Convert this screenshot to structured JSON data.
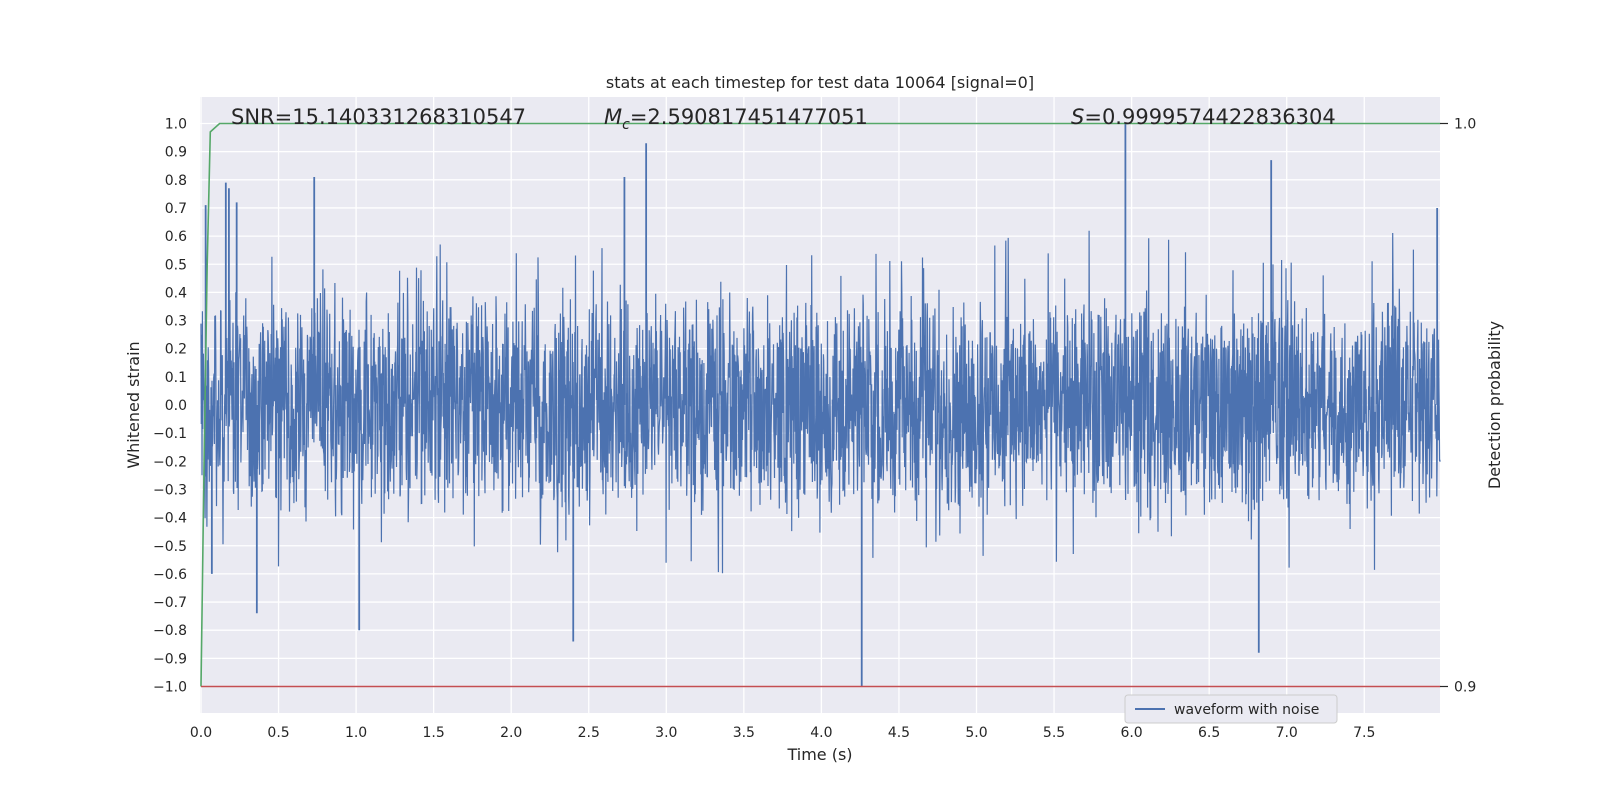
{
  "chart_data": {
    "type": "line",
    "title": "stats at each timestep for test data 10064 [signal=0]",
    "xlabel": "Time (s)",
    "ylabel": "Whitened strain",
    "y2label": "Detection probability",
    "xlim": [
      0.0,
      8.0
    ],
    "ylim": [
      -1.1,
      1.1
    ],
    "y2lim": [
      0.9,
      1.0
    ],
    "grid": true,
    "x_ticks": [
      0.0,
      0.5,
      1.0,
      1.5,
      2.0,
      2.5,
      3.0,
      3.5,
      4.0,
      4.5,
      5.0,
      5.5,
      6.0,
      6.5,
      7.0,
      7.5
    ],
    "x_tick_labels": [
      "0.0",
      "0.5",
      "1.0",
      "1.5",
      "2.0",
      "2.5",
      "3.0",
      "3.5",
      "4.0",
      "4.5",
      "5.0",
      "5.5",
      "6.0",
      "6.5",
      "7.0",
      "7.5"
    ],
    "y_ticks": [
      1.0,
      0.9,
      0.8,
      0.7,
      0.6,
      0.5,
      0.4,
      0.3,
      0.2,
      0.1,
      0.0,
      -0.1,
      -0.2,
      -0.3,
      -0.4,
      -0.5,
      -0.6,
      -0.7,
      -0.8,
      -0.9,
      -1.0
    ],
    "y_tick_labels": [
      "1.0",
      "0.9",
      "0.8",
      "0.7",
      "0.6",
      "0.5",
      "0.4",
      "0.3",
      "0.2",
      "0.1",
      "0.0",
      "−0.1",
      "−0.2",
      "−0.3",
      "−0.4",
      "−0.5",
      "−0.6",
      "−0.7",
      "−0.8",
      "−0.9",
      "−1.0"
    ],
    "y2_ticks": [
      1.0,
      0.9
    ],
    "y2_tick_labels": [
      "1.0",
      "0.9"
    ],
    "annotations": {
      "snr": "SNR=15.140331268310547",
      "mc_symbol": "M",
      "mc_subscript": "c",
      "mc_value": "=2.590817451477051",
      "s_symbol": "S",
      "s_value": "=0.9999574422836304"
    },
    "legend": {
      "position": "lower-right",
      "entries": [
        "waveform with noise"
      ]
    },
    "series": [
      {
        "name": "waveform with noise",
        "color": "#4c72b0",
        "description_values": {
          "x_range": [
            0.0,
            7.99
          ],
          "envelope_upper_typical": 0.45,
          "envelope_lower_typical": -0.45,
          "core_amplitude": 0.3,
          "spikes": [
            {
              "x": 0.03,
              "y": 0.71
            },
            {
              "x": 0.07,
              "y": -0.6
            },
            {
              "x": 0.16,
              "y": 0.79
            },
            {
              "x": 0.18,
              "y": 0.77
            },
            {
              "x": 0.23,
              "y": 0.72
            },
            {
              "x": 0.36,
              "y": -0.74
            },
            {
              "x": 0.73,
              "y": 0.81
            },
            {
              "x": 1.02,
              "y": -0.8
            },
            {
              "x": 2.4,
              "y": -0.84
            },
            {
              "x": 2.73,
              "y": 0.81
            },
            {
              "x": 2.87,
              "y": 0.93
            },
            {
              "x": 4.26,
              "y": -1.0
            },
            {
              "x": 5.96,
              "y": 1.0
            },
            {
              "x": 6.82,
              "y": -0.88
            },
            {
              "x": 6.9,
              "y": 0.87
            },
            {
              "x": 7.97,
              "y": 0.7
            }
          ]
        }
      },
      {
        "name": "detection probability",
        "color": "#55a868",
        "axis": "y2",
        "x": [
          0.0,
          0.02,
          0.04,
          0.06,
          0.12,
          7.99
        ],
        "values": [
          0.9,
          0.94,
          0.975,
          0.9985,
          1.0,
          1.0
        ]
      },
      {
        "name": "threshold",
        "color": "#c44e52",
        "axis": "y2",
        "x": [
          0.0,
          7.99
        ],
        "values": [
          0.9,
          0.9
        ]
      }
    ]
  }
}
